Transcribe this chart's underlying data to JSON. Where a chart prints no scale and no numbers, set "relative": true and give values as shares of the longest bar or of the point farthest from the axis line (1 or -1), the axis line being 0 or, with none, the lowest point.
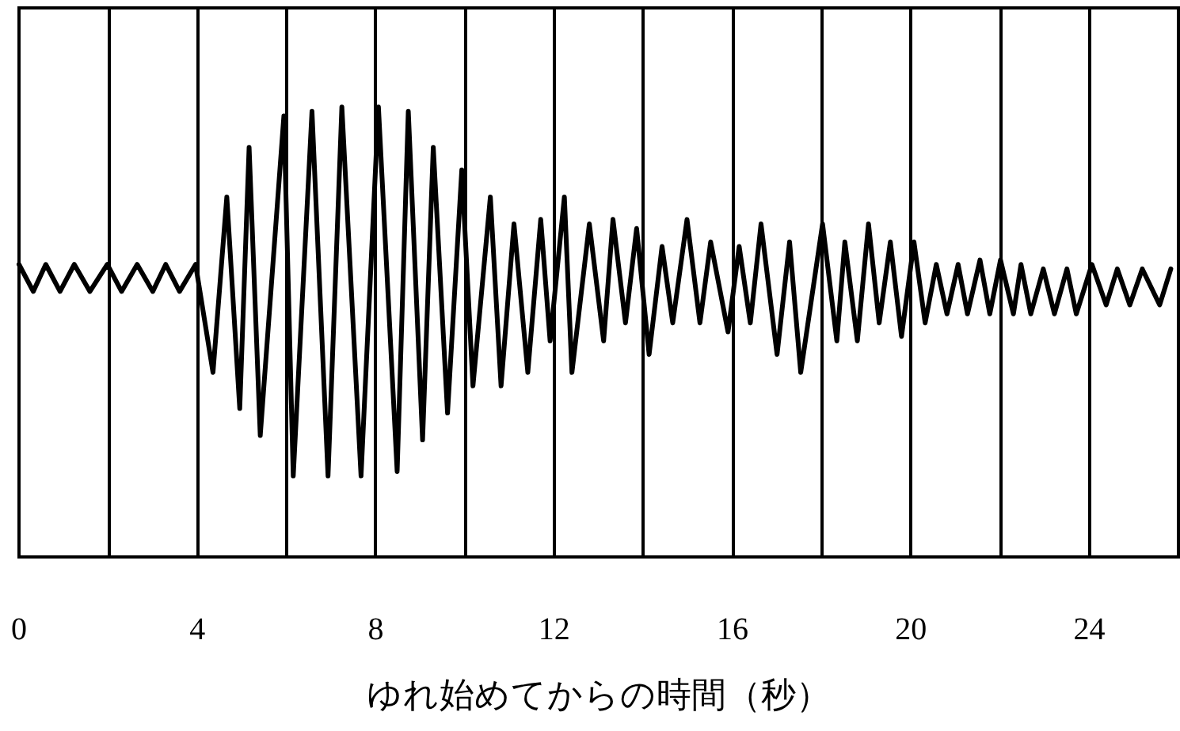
{
  "chart_data": {
    "type": "line",
    "relative": true,
    "xlabel": "ゆれ始めてからの時間（秒）",
    "xlim": [
      0,
      26
    ],
    "xticks": [
      0,
      {
        "value": 2,
        "label": null
      },
      4,
      {
        "value": 6,
        "label": null
      },
      8,
      {
        "value": 10,
        "label": null
      },
      12,
      {
        "value": 14,
        "label": null
      },
      16,
      {
        "value": 18,
        "label": null
      },
      20,
      {
        "value": 22,
        "label": null
      },
      24,
      {
        "value": 26,
        "label": null
      }
    ],
    "grid": "x",
    "marker": "none",
    "line_style": "solid",
    "series": [
      {
        "color": "#000000",
        "x": [
          0,
          0.32,
          0.6,
          0.92,
          1.24,
          1.59,
          1.98,
          2.3,
          2.65,
          3.0,
          3.29,
          3.6,
          3.96,
          4.35,
          4.66,
          4.95,
          5.16,
          5.41,
          5.94,
          6.15,
          6.57,
          6.93,
          7.24,
          7.67,
          8.06,
          8.48,
          8.73,
          9.05,
          9.29,
          9.61,
          9.93,
          10.18,
          10.57,
          10.81,
          11.1,
          11.41,
          11.7,
          11.91,
          12.23,
          12.4,
          12.79,
          13.11,
          13.32,
          13.6,
          13.85,
          14.13,
          14.42,
          14.66,
          14.98,
          15.27,
          15.51,
          15.9,
          16.15,
          16.4,
          16.64,
          17.0,
          17.28,
          17.53,
          18.02,
          18.34,
          18.52,
          18.8,
          19.05,
          19.29,
          19.54,
          19.79,
          20.07,
          20.32,
          20.57,
          20.81,
          21.06,
          21.27,
          21.55,
          21.77,
          22.01,
          22.3,
          22.47,
          22.69,
          22.97,
          23.22,
          23.5,
          23.71,
          24.06,
          24.38,
          24.63,
          24.91,
          25.19,
          25.58,
          25.83
        ],
        "values": [
          0.65,
          0.59,
          0.65,
          0.59,
          0.65,
          0.59,
          0.65,
          0.59,
          0.65,
          0.59,
          0.65,
          0.59,
          0.65,
          0.41,
          0.8,
          0.33,
          0.91,
          0.27,
          0.98,
          0.18,
          0.99,
          0.18,
          1.0,
          0.18,
          1.0,
          0.19,
          0.99,
          0.26,
          0.91,
          0.32,
          0.86,
          0.38,
          0.8,
          0.38,
          0.74,
          0.41,
          0.75,
          0.48,
          0.8,
          0.41,
          0.74,
          0.48,
          0.75,
          0.52,
          0.73,
          0.45,
          0.69,
          0.52,
          0.75,
          0.52,
          0.7,
          0.5,
          0.69,
          0.52,
          0.74,
          0.45,
          0.7,
          0.41,
          0.74,
          0.48,
          0.7,
          0.48,
          0.74,
          0.52,
          0.7,
          0.49,
          0.7,
          0.52,
          0.65,
          0.54,
          0.65,
          0.54,
          0.66,
          0.54,
          0.66,
          0.54,
          0.65,
          0.54,
          0.64,
          0.54,
          0.64,
          0.54,
          0.65,
          0.56,
          0.64,
          0.56,
          0.64,
          0.56,
          0.64
        ]
      }
    ]
  }
}
